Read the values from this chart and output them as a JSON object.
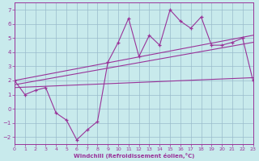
{
  "xlabel": "Windchill (Refroidissement éolien,°C)",
  "bg_color": "#c8eaec",
  "line_color": "#993399",
  "grid_color": "#99bbcc",
  "xlim": [
    0,
    23
  ],
  "ylim": [
    -2.5,
    7.5
  ],
  "xticks": [
    0,
    1,
    2,
    3,
    4,
    5,
    6,
    7,
    8,
    9,
    10,
    11,
    12,
    13,
    14,
    15,
    16,
    17,
    18,
    19,
    20,
    21,
    22,
    23
  ],
  "yticks": [
    -2,
    -1,
    0,
    1,
    2,
    3,
    4,
    5,
    6,
    7
  ],
  "main_x": [
    0,
    1,
    2,
    3,
    4,
    5,
    6,
    7,
    8,
    9,
    10,
    11,
    12,
    13,
    14,
    15,
    16,
    17,
    18,
    19,
    20,
    21,
    22,
    23
  ],
  "main_y": [
    2.0,
    1.0,
    1.3,
    1.5,
    -0.3,
    -0.8,
    -2.2,
    -1.5,
    -0.9,
    3.3,
    4.7,
    6.4,
    3.7,
    5.2,
    4.5,
    7.0,
    6.2,
    5.7,
    6.5,
    4.5,
    4.5,
    4.7,
    5.0,
    2.0
  ],
  "line1_x": [
    0,
    23
  ],
  "line1_y": [
    2.0,
    5.2
  ],
  "line2_x": [
    0,
    23
  ],
  "line2_y": [
    1.7,
    4.7
  ],
  "line3_x": [
    0,
    23
  ],
  "line3_y": [
    1.5,
    2.2
  ]
}
